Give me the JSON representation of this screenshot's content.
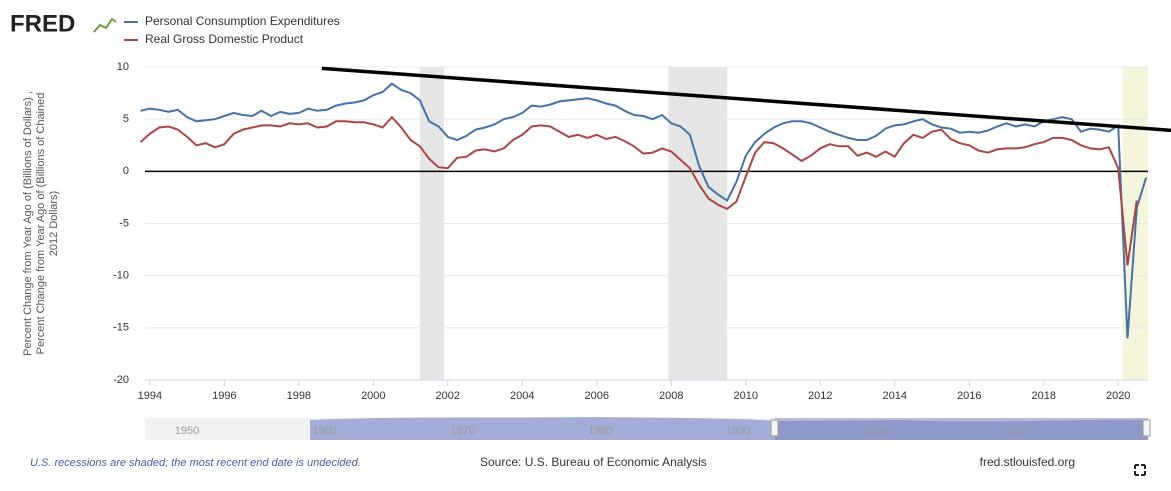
{
  "chart_data": {
    "type": "line",
    "logo": "FRED",
    "y_label_lines": [
      "Percent Change from Year Ago of (Billions of Dollars) ,",
      "Percent Change from Year Ago of (Billions of Chained",
      "2012 Dollars)"
    ],
    "x": [
      1993.75,
      1994,
      1994.25,
      1994.5,
      1994.75,
      1995,
      1995.25,
      1995.5,
      1995.75,
      1996,
      1996.25,
      1996.5,
      1996.75,
      1997,
      1997.25,
      1997.5,
      1997.75,
      1998,
      1998.25,
      1998.5,
      1998.75,
      1999,
      1999.25,
      1999.5,
      1999.75,
      2000,
      2000.25,
      2000.5,
      2000.75,
      2001,
      2001.25,
      2001.5,
      2001.75,
      2002,
      2002.25,
      2002.5,
      2002.75,
      2003,
      2003.25,
      2003.5,
      2003.75,
      2004,
      2004.25,
      2004.5,
      2004.75,
      2005,
      2005.25,
      2005.5,
      2005.75,
      2006,
      2006.25,
      2006.5,
      2006.75,
      2007,
      2007.25,
      2007.5,
      2007.75,
      2008,
      2008.25,
      2008.5,
      2008.75,
      2009,
      2009.25,
      2009.5,
      2009.75,
      2010,
      2010.25,
      2010.5,
      2010.75,
      2011,
      2011.25,
      2011.5,
      2011.75,
      2012,
      2012.25,
      2012.5,
      2012.75,
      2013,
      2013.25,
      2013.5,
      2013.75,
      2014,
      2014.25,
      2014.5,
      2014.75,
      2015,
      2015.25,
      2015.5,
      2015.75,
      2016,
      2016.25,
      2016.5,
      2016.75,
      2017,
      2017.25,
      2017.5,
      2017.75,
      2018,
      2018.25,
      2018.5,
      2018.75,
      2019,
      2019.25,
      2019.5,
      2019.75,
      2020,
      2020.25,
      2020.5,
      2020.75
    ],
    "series": [
      {
        "name": "Personal Consumption Expenditures",
        "color": "#4572a7",
        "values": [
          5.8,
          6.0,
          5.9,
          5.7,
          5.9,
          5.2,
          4.8,
          4.9,
          5.0,
          5.3,
          5.6,
          5.4,
          5.3,
          5.8,
          5.3,
          5.7,
          5.5,
          5.6,
          6.0,
          5.8,
          5.9,
          6.3,
          6.5,
          6.6,
          6.8,
          7.3,
          7.6,
          8.4,
          7.8,
          7.5,
          6.8,
          4.8,
          4.3,
          3.3,
          3.0,
          3.4,
          4.0,
          4.2,
          4.5,
          5.0,
          5.2,
          5.6,
          6.3,
          6.2,
          6.4,
          6.7,
          6.8,
          6.9,
          7.0,
          6.8,
          6.5,
          6.3,
          5.8,
          5.4,
          5.3,
          5.0,
          5.4,
          4.6,
          4.3,
          3.5,
          0.5,
          -1.5,
          -2.2,
          -2.8,
          -1.0,
          1.5,
          2.8,
          3.6,
          4.2,
          4.6,
          4.8,
          4.8,
          4.6,
          4.2,
          3.8,
          3.5,
          3.2,
          3.0,
          3.0,
          3.4,
          4.1,
          4.4,
          4.5,
          4.8,
          5.0,
          4.5,
          4.2,
          4.1,
          3.7,
          3.8,
          3.7,
          3.9,
          4.3,
          4.6,
          4.3,
          4.5,
          4.3,
          4.8,
          5.0,
          5.2,
          5.0,
          3.8,
          4.1,
          4.0,
          3.8,
          4.4,
          -16.0,
          -3.5,
          -0.6
        ]
      },
      {
        "name": "Real Gross Domestic Product",
        "color": "#aa4643",
        "values": [
          2.8,
          3.6,
          4.2,
          4.3,
          4.0,
          3.3,
          2.5,
          2.7,
          2.3,
          2.6,
          3.6,
          4.0,
          4.2,
          4.4,
          4.4,
          4.3,
          4.6,
          4.5,
          4.6,
          4.2,
          4.3,
          4.8,
          4.8,
          4.7,
          4.7,
          4.5,
          4.2,
          5.2,
          4.2,
          3.0,
          2.4,
          1.2,
          0.4,
          0.3,
          1.3,
          1.4,
          2.0,
          2.1,
          1.9,
          2.2,
          3.0,
          3.5,
          4.3,
          4.4,
          4.3,
          3.8,
          3.3,
          3.5,
          3.2,
          3.5,
          3.1,
          3.3,
          2.9,
          2.4,
          1.7,
          1.8,
          2.2,
          1.9,
          1.1,
          0.3,
          -1.3,
          -2.6,
          -3.2,
          -3.6,
          -2.9,
          -0.5,
          1.8,
          2.8,
          2.7,
          2.2,
          1.6,
          1.0,
          1.5,
          2.2,
          2.6,
          2.4,
          2.4,
          1.5,
          1.8,
          1.4,
          1.9,
          1.4,
          2.7,
          3.5,
          3.2,
          3.8,
          4.0,
          3.1,
          2.7,
          2.5,
          2.0,
          1.8,
          2.1,
          2.2,
          2.2,
          2.3,
          2.6,
          2.8,
          3.2,
          3.2,
          3.0,
          2.5,
          2.2,
          2.1,
          2.3,
          0.3,
          -9.0,
          -2.8,
          null
        ]
      }
    ],
    "xlim": [
      1993.87,
      2020.8
    ],
    "xticks": [
      1994,
      1996,
      1998,
      2000,
      2002,
      2004,
      2006,
      2008,
      2010,
      2012,
      2014,
      2016,
      2018,
      2020
    ],
    "ylim": [
      -20,
      10
    ],
    "yticks": [
      10,
      5,
      0,
      -5,
      -10,
      -15,
      -20
    ],
    "grid": true,
    "recessions": [
      [
        2001.25,
        2001.9
      ],
      [
        2007.92,
        2009.5
      ]
    ],
    "recent_recession": [
      2020.12,
      2020.8
    ],
    "trend_line": {
      "x": [
        1998.62,
        2021.42
      ],
      "y": [
        9.87,
        3.93
      ]
    },
    "navigator_labels": [
      "1950",
      "1960",
      "1970",
      "1980",
      "1990",
      "2000",
      "2010"
    ],
    "note": "U.S. recessions are shaded; the most recent end date is undecided.",
    "source": "Source: U.S. Bureau of Economic Analysis",
    "site": "fred.stlouisfed.org"
  }
}
